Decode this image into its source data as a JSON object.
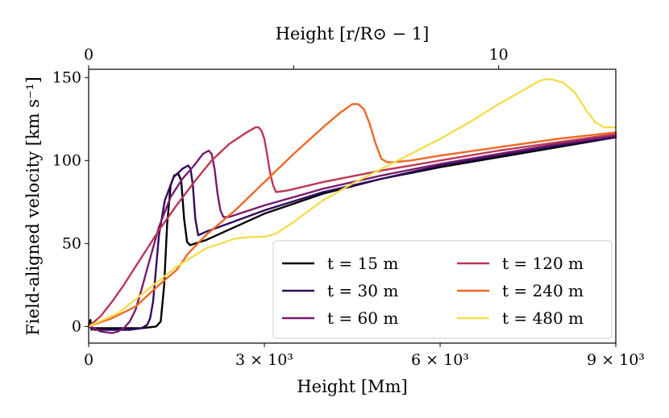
{
  "chart_data": {
    "type": "line",
    "xlabel": "Height [Mm]",
    "ylabel": "Field-aligned velocity [km s⁻¹]",
    "top_xlabel": "Height [r/R⊙ − 1]",
    "xlim": [
      0,
      9000
    ],
    "ylim": [
      -10,
      155
    ],
    "x_ticks": [
      {
        "value": 0,
        "label": "0"
      },
      {
        "value": 3000,
        "label": "3 × 10³"
      },
      {
        "value": 6000,
        "label": "6 × 10³"
      },
      {
        "value": 9000,
        "label": "9 × 10³"
      }
    ],
    "top_x_ticks": [
      {
        "value": 0,
        "label": "0"
      },
      {
        "value": 3500,
        "label": ""
      },
      {
        "value": 7000,
        "label": "10"
      }
    ],
    "y_ticks": [
      {
        "value": 0,
        "label": "0"
      },
      {
        "value": 50,
        "label": "50"
      },
      {
        "value": 100,
        "label": "100"
      },
      {
        "value": 150,
        "label": "150"
      }
    ],
    "legend": {
      "position": "lower-right",
      "columns": 2
    },
    "series": [
      {
        "name": "t = 15 m",
        "color": "#000004",
        "x": [
          0,
          30,
          50,
          80,
          150,
          400,
          900,
          1150,
          1230,
          1290,
          1340,
          1400,
          1460,
          1530,
          1580,
          1630,
          1680,
          1730,
          2000,
          3000,
          4000,
          5000,
          6000,
          7000,
          8000,
          9000
        ],
        "y": [
          0,
          4,
          -2,
          -1,
          -1,
          -1,
          -1,
          0,
          3,
          25,
          62,
          85,
          91,
          92,
          88,
          65,
          51,
          49,
          52,
          68,
          80,
          89,
          96,
          102,
          108,
          114
        ]
      },
      {
        "name": "t = 30 m",
        "color": "#320a5e",
        "x": [
          0,
          50,
          100,
          300,
          700,
          900,
          1000,
          1050,
          1100,
          1150,
          1200,
          1300,
          1450,
          1600,
          1700,
          1740,
          1780,
          1820,
          1870,
          2000,
          3000,
          4000,
          5000,
          6000,
          7000,
          8000,
          9000
        ],
        "y": [
          0,
          -1,
          -2,
          -2,
          -2,
          -1,
          1,
          5,
          15,
          35,
          55,
          76,
          90,
          95,
          97,
          95,
          85,
          65,
          55,
          57,
          70,
          81,
          89,
          97,
          103,
          109,
          114
        ]
      },
      {
        "name": "t = 60 m",
        "color": "#781c6d",
        "x": [
          0,
          100,
          200,
          400,
          500,
          600,
          700,
          800,
          900,
          1000,
          1200,
          1400,
          1600,
          1800,
          1950,
          2050,
          2100,
          2150,
          2200,
          2250,
          2300,
          2400,
          3000,
          4000,
          5000,
          6000,
          7000,
          8000,
          9000
        ],
        "y": [
          0,
          -1,
          -3,
          -4,
          -3,
          -1,
          3,
          10,
          22,
          35,
          60,
          78,
          89,
          97,
          104,
          106,
          104,
          95,
          80,
          70,
          66,
          66,
          73,
          83,
          91,
          98,
          104,
          110,
          115
        ]
      },
      {
        "name": "t = 120 m",
        "color": "#bc3754",
        "x": [
          0,
          200,
          400,
          600,
          800,
          1000,
          1200,
          1500,
          1800,
          2100,
          2400,
          2700,
          2850,
          2900,
          2950,
          3000,
          3050,
          3100,
          3150,
          3200,
          3400,
          4000,
          5000,
          6000,
          7000,
          8000,
          9000
        ],
        "y": [
          0,
          6,
          15,
          25,
          36,
          47,
          58,
          73,
          87,
          100,
          110,
          117,
          120,
          120,
          118,
          113,
          103,
          92,
          85,
          81,
          82,
          87,
          94,
          100,
          106,
          111,
          116
        ]
      },
      {
        "name": "t = 240 m",
        "color": "#ed6925",
        "x": [
          0,
          400,
          800,
          1200,
          1500,
          1700,
          2000,
          2500,
          3000,
          3500,
          4000,
          4300,
          4500,
          4600,
          4700,
          4800,
          4900,
          5000,
          5100,
          5200,
          5500,
          6000,
          7000,
          8000,
          9000
        ],
        "y": [
          0,
          5,
          12,
          25,
          34,
          44,
          55,
          70,
          87,
          104,
          120,
          129,
          134,
          134,
          131,
          122,
          110,
          101,
          99,
          99,
          100,
          103,
          108,
          113,
          117
        ]
      },
      {
        "name": "t = 480 m",
        "color": "#f4dd4f",
        "x": [
          0,
          500,
          1000,
          1500,
          2000,
          2500,
          2800,
          3000,
          3200,
          3500,
          4000,
          4500,
          5000,
          5500,
          6000,
          6500,
          7000,
          7500,
          7700,
          7800,
          7900,
          8100,
          8300,
          8500,
          8650,
          8800,
          9000
        ],
        "y": [
          0,
          8,
          22,
          36,
          47,
          53,
          54,
          54,
          56,
          63,
          76,
          86,
          95,
          104,
          113,
          123,
          134,
          144,
          148,
          149,
          149,
          147,
          141,
          130,
          123,
          120,
          120
        ]
      }
    ]
  }
}
